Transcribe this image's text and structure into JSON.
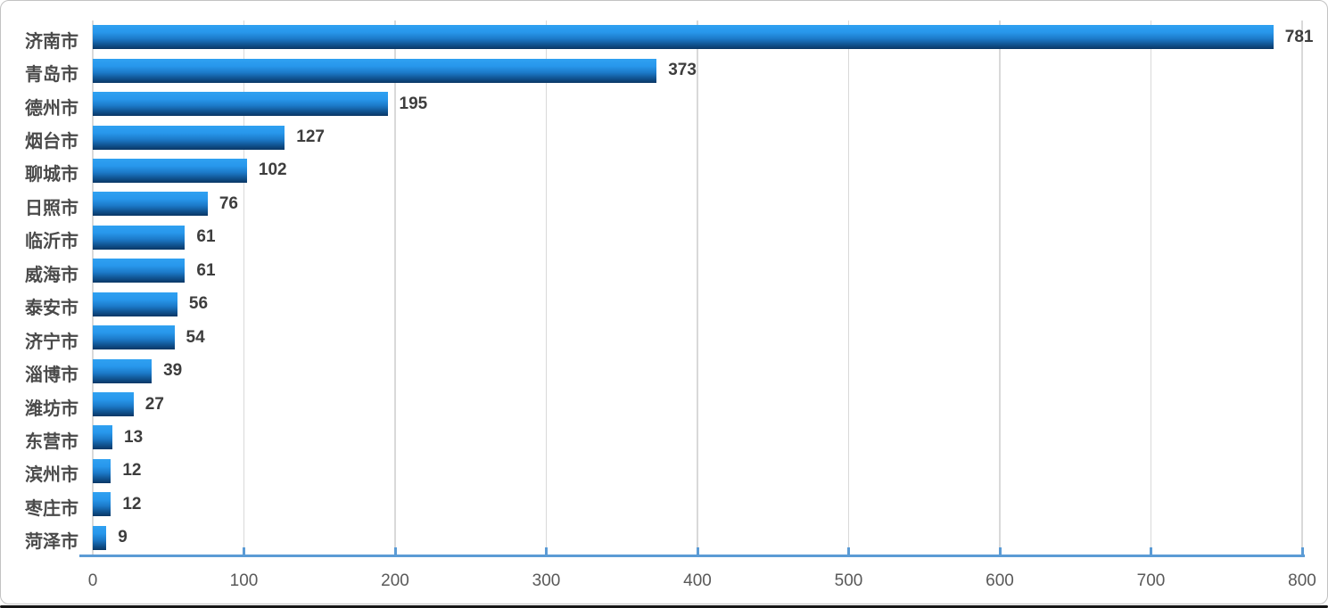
{
  "chart_data": {
    "type": "bar",
    "orientation": "horizontal",
    "title": "",
    "xlabel": "",
    "ylabel": "",
    "categories": [
      "济南市",
      "青岛市",
      "德州市",
      "烟台市",
      "聊城市",
      "日照市",
      "临沂市",
      "威海市",
      "泰安市",
      "济宁市",
      "淄博市",
      "潍坊市",
      "东营市",
      "滨州市",
      "枣庄市",
      "菏泽市"
    ],
    "values": [
      781,
      373,
      195,
      127,
      102,
      76,
      61,
      61,
      56,
      54,
      39,
      27,
      13,
      12,
      12,
      9
    ],
    "value_labels": [
      "781",
      "373",
      "195",
      "127",
      "102",
      "76",
      "61",
      "61",
      "56",
      "54",
      "39",
      "27",
      "13",
      "12",
      "12",
      "9"
    ],
    "xlim": [
      0,
      800
    ],
    "x_tick_labels": [
      "0",
      "100",
      "200",
      "300",
      "400",
      "500",
      "600",
      "700",
      "800"
    ],
    "x_tick_values": [
      0,
      100,
      200,
      300,
      400,
      500,
      600,
      700,
      800
    ],
    "grid": true,
    "legend": false,
    "colors": {
      "bar_gradient_top": "#2fa1f1",
      "bar_gradient_mid1": "#2897ec",
      "bar_gradient_mid2": "#1c79c8",
      "bar_gradient_mid3": "#10528f",
      "bar_gradient_bottom": "#0a3765",
      "axis_line": "#5b9bd5",
      "gridline": "#d9d9d9",
      "category_label": "#4a4a4a",
      "value_label": "#3d3d3d",
      "tick_label": "#595959",
      "card_border": "#c2c2c2",
      "background": "#ffffff"
    }
  }
}
